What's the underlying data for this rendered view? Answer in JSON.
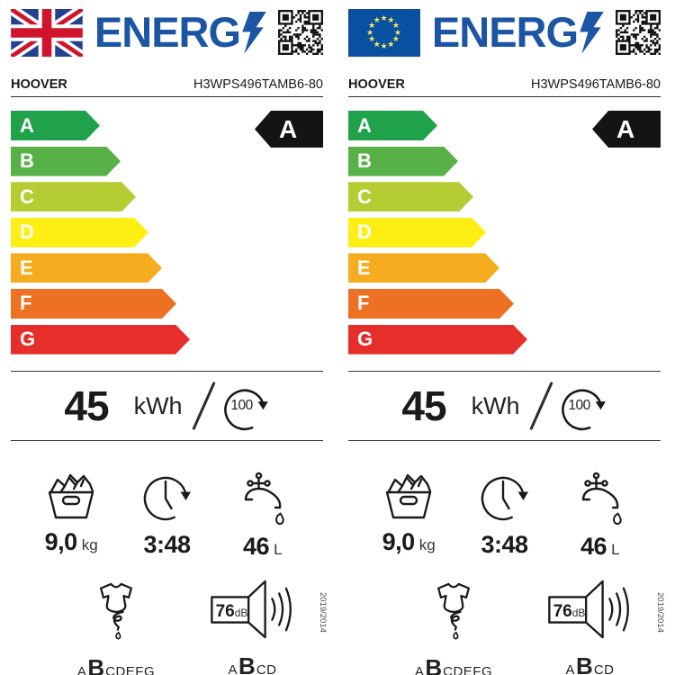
{
  "colors": {
    "logo_blue": "#1d55a5",
    "uk_flag_blue": "#24408e",
    "uk_flag_red": "#cf142b",
    "eu_flag_blue": "#0a50a1",
    "eu_flag_star_yellow": "#f7e95c",
    "rating_badge_black": "#161413",
    "class_colors": {
      "A": "#1fa24a",
      "B": "#57b147",
      "C": "#b6cc33",
      "D": "#fdee14",
      "E": "#f5ac1e",
      "F": "#ec7123",
      "G": "#e62e2a"
    }
  },
  "labels": [
    {
      "flag": "uk",
      "logo_text": "ENERG",
      "brand": "HOOVER",
      "model": "H3WPS496TAMB6-80",
      "rating": "A",
      "energy_classes": [
        "A",
        "B",
        "C",
        "D",
        "E",
        "F",
        "G"
      ],
      "energy": {
        "value": "45",
        "unit": "kWh",
        "cycles": "100"
      },
      "capacity": {
        "value": "9,0",
        "unit": "kg"
      },
      "duration": "3:48",
      "water": {
        "value": "46",
        "unit": "L"
      },
      "spin_scale": {
        "prefix": "A",
        "current": "B",
        "suffix": "CDEFG"
      },
      "noise": {
        "value": "76",
        "unit": "dB"
      },
      "noise_scale": {
        "prefix": "A",
        "current": "B",
        "suffix": "CD"
      },
      "regulation": "2019/2014"
    },
    {
      "flag": "eu",
      "logo_text": "ENERG",
      "brand": "HOOVER",
      "model": "H3WPS496TAMB6-80",
      "rating": "A",
      "energy_classes": [
        "A",
        "B",
        "C",
        "D",
        "E",
        "F",
        "G"
      ],
      "energy": {
        "value": "45",
        "unit": "kWh",
        "cycles": "100"
      },
      "capacity": {
        "value": "9,0",
        "unit": "kg"
      },
      "duration": "3:48",
      "water": {
        "value": "46",
        "unit": "L"
      },
      "spin_scale": {
        "prefix": "A",
        "current": "B",
        "suffix": "CDEFG"
      },
      "noise": {
        "value": "76",
        "unit": "dB"
      },
      "noise_scale": {
        "prefix": "A",
        "current": "B",
        "suffix": "CD"
      },
      "regulation": "2019/2014"
    }
  ]
}
